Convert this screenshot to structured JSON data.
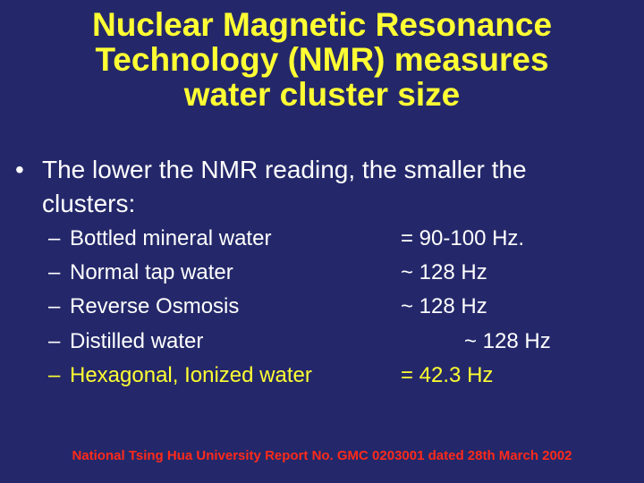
{
  "slide": {
    "title_lines": [
      "Nuclear Magnetic Resonance",
      "Technology (NMR) measures",
      "water cluster size"
    ],
    "bullet": {
      "marker": "•",
      "text_lines": [
        "The lower the NMR reading, the smaller the",
        "clusters:"
      ]
    },
    "items": [
      {
        "dash": "–",
        "label": "Bottled mineral water",
        "value": "= 90-100 Hz."
      },
      {
        "dash": "–",
        "label": "Normal tap water",
        "value": "~ 128 Hz"
      },
      {
        "dash": "–",
        "label": "Reverse Osmosis",
        "value": "~ 128 Hz"
      },
      {
        "dash": "–",
        "label": "Distilled water",
        "value": "~ 128 Hz"
      },
      {
        "dash": "–",
        "label": "Hexagonal, Ionized water",
        "value": "= 42.3 Hz"
      }
    ],
    "footer": "National Tsing Hua University Report No. GMC 0203001 dated 28th March 2002",
    "colors": {
      "background": "#24286a",
      "title": "#ffff33",
      "body_text": "#ffffff",
      "highlight": "#ffff33",
      "footer": "#ff2a1a"
    }
  }
}
